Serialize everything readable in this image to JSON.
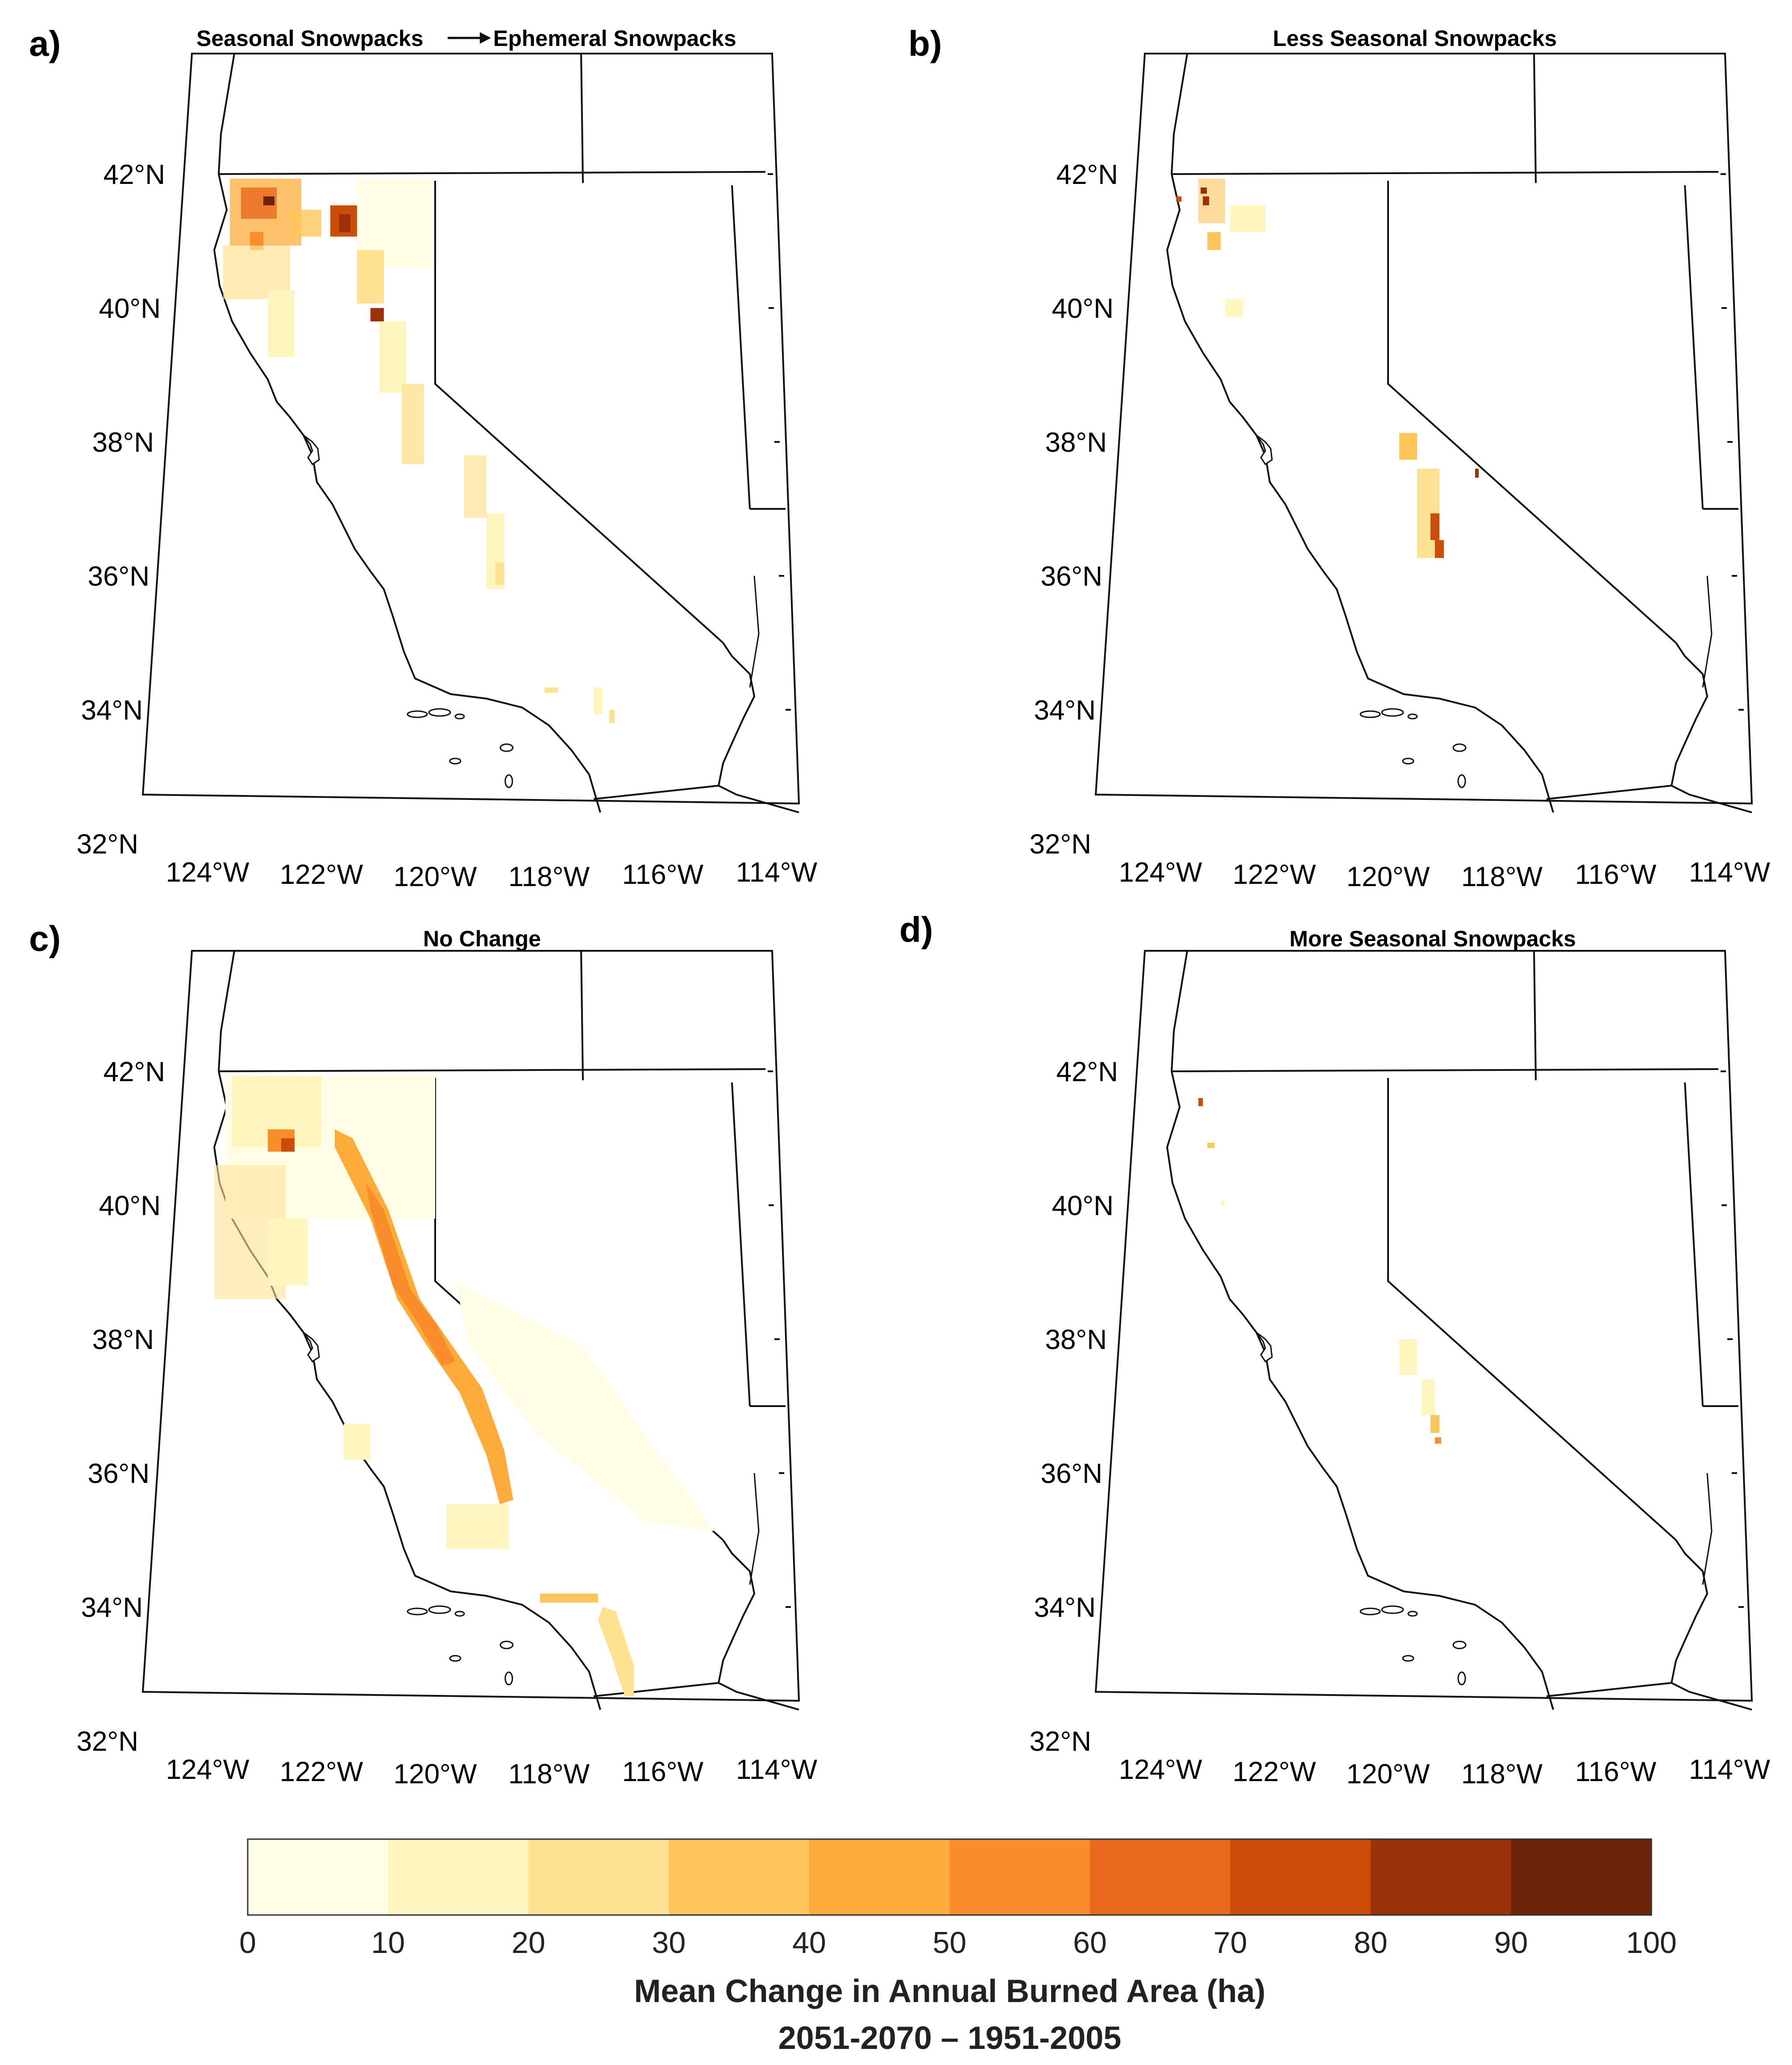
{
  "panels": [
    {
      "letter": "a)",
      "title_left": "Seasonal Snowpacks",
      "title_right": "Ephemeral Snowpacks"
    },
    {
      "letter": "b)",
      "title": "Less Seasonal Snowpacks"
    },
    {
      "letter": "c)",
      "title": "No Change"
    },
    {
      "letter": "d)",
      "title": "More Seasonal Snowpacks"
    }
  ],
  "lat_labels": [
    "42°N",
    "40°N",
    "38°N",
    "36°N",
    "34°N",
    "32°N"
  ],
  "lon_labels": [
    "124°W",
    "122°W",
    "120°W",
    "118°W",
    "116°W",
    "114°W"
  ],
  "colorbar": {
    "ticks": [
      "0",
      "10",
      "20",
      "30",
      "40",
      "50",
      "60",
      "70",
      "80",
      "90",
      "100"
    ],
    "colors": [
      "#fffde6",
      "#fff6bf",
      "#fee292",
      "#fec55b",
      "#fdac3b",
      "#f98d29",
      "#e8691b",
      "#cc4c09",
      "#9a3109",
      "#6b2408"
    ],
    "title": "Mean Change in Annual Burned Area (ha)",
    "subtitle": "2051-2070 – 1951-2005"
  }
}
